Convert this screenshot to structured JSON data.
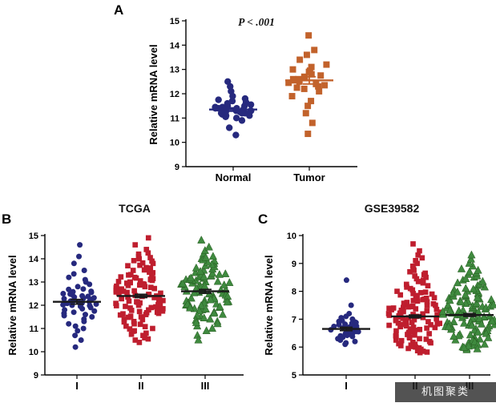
{
  "watermark": {
    "text": "机图聚类"
  },
  "chart_data": [
    {
      "id": "A",
      "type": "scatter",
      "panel_label": "A",
      "title": "",
      "p_label": "P < .001",
      "ylabel": "Relative mRNA level",
      "ylim": [
        9,
        15
      ],
      "yticks": [
        9,
        10,
        11,
        12,
        13,
        14,
        15
      ],
      "legend": "none",
      "grid": false,
      "groups": [
        {
          "label": "Normal",
          "marker": "circle",
          "color": "#26297e",
          "edge": "#191b55",
          "line_color": "#26297e",
          "mean": 11.35,
          "sem": 0.07,
          "values": [
            11.3,
            11.4,
            11.2,
            11.5,
            11.1,
            11.35,
            11.25,
            11.45,
            11.6,
            11.0,
            11.7,
            11.15,
            11.3,
            11.4,
            11.2,
            11.55,
            11.05,
            11.35,
            11.5,
            11.25,
            11.8,
            10.9,
            11.45,
            11.3,
            11.65,
            11.1,
            12.1,
            12.3,
            12.5,
            10.3,
            10.6,
            11.9,
            11.75,
            11.4,
            11.2,
            11.3
          ]
        },
        {
          "label": "Tumor",
          "marker": "square",
          "color": "#c2622b",
          "edge": "#8a3f16",
          "line_color": "#c2622b",
          "mean": 12.55,
          "sem": 0.15,
          "values": [
            12.5,
            12.6,
            12.4,
            12.7,
            12.3,
            12.8,
            12.55,
            12.45,
            12.9,
            12.2,
            13.0,
            12.65,
            13.2,
            13.4,
            13.6,
            13.8,
            14.4,
            12.1,
            11.9,
            11.7,
            11.5,
            11.2,
            10.8,
            10.35,
            12.75,
            12.35,
            13.1,
            12.95,
            12.25,
            12.6
          ]
        }
      ]
    },
    {
      "id": "B",
      "type": "scatter",
      "panel_label": "B",
      "title": "TCGA",
      "ylabel": "Relative mRNA level",
      "ylim": [
        9,
        15
      ],
      "yticks": [
        9,
        10,
        11,
        12,
        13,
        14,
        15
      ],
      "legend": "none",
      "grid": false,
      "groups": [
        {
          "label": "I",
          "marker": "circle",
          "color": "#26297e",
          "edge": "#191b55",
          "line_color": "#1a1a1a",
          "mean": 12.15,
          "sem": 0.1,
          "values": [
            12.1,
            12.2,
            12.0,
            12.3,
            11.9,
            12.15,
            12.25,
            11.8,
            12.4,
            11.7,
            12.5,
            12.05,
            11.95,
            12.35,
            11.6,
            12.6,
            11.5,
            12.45,
            12.55,
            11.4,
            12.7,
            11.3,
            12.8,
            11.2,
            12.9,
            11.1,
            13.0,
            11.0,
            13.1,
            10.9,
            13.2,
            10.7,
            13.35,
            10.5,
            13.5,
            10.2,
            14.6,
            14.1,
            13.8,
            12.12,
            12.18,
            12.08,
            12.22,
            11.85,
            12.28,
            11.75,
            12.38,
            12.02,
            11.98,
            12.32,
            12.48,
            11.65,
            12.58,
            11.55,
            12.68
          ]
        },
        {
          "label": "II",
          "marker": "square",
          "color": "#bf1e2e",
          "edge": "#7e1420",
          "line_color": "#1a1a1a",
          "mean": 12.4,
          "sem": 0.07,
          "values": [
            12.4,
            12.45,
            12.35,
            12.5,
            12.3,
            12.55,
            12.25,
            12.6,
            12.2,
            12.65,
            12.15,
            12.7,
            12.1,
            12.75,
            12.05,
            12.8,
            12.0,
            12.85,
            11.95,
            12.9,
            11.9,
            12.95,
            11.85,
            13.0,
            11.8,
            13.05,
            11.75,
            13.1,
            11.7,
            13.15,
            11.65,
            13.2,
            11.6,
            13.3,
            11.5,
            13.4,
            11.4,
            13.5,
            11.3,
            13.6,
            11.2,
            13.7,
            11.1,
            13.8,
            11.0,
            13.9,
            10.9,
            14.0,
            10.8,
            14.1,
            10.7,
            14.25,
            10.6,
            14.4,
            10.5,
            14.6,
            10.4,
            14.9,
            12.42,
            12.38,
            12.47,
            12.33,
            12.52,
            12.28,
            12.57,
            12.23,
            12.62,
            12.18,
            12.67,
            12.13,
            12.72,
            12.08,
            12.77,
            12.03,
            12.82,
            11.98,
            12.87,
            11.93,
            12.92,
            11.88,
            12.97,
            11.83,
            13.02,
            11.78,
            13.07,
            11.73,
            13.12,
            11.68,
            13.17,
            11.63,
            13.22,
            11.58,
            13.27,
            11.53,
            13.32,
            11.48,
            13.42,
            11.38,
            13.52,
            11.28,
            13.62,
            11.18,
            13.72,
            11.08,
            13.82,
            10.98,
            13.92,
            10.88,
            14.05,
            10.75,
            14.2,
            10.55
          ]
        },
        {
          "label": "III",
          "marker": "triangle",
          "color": "#3f8a3f",
          "edge": "#25591f",
          "line_color": "#1a1a1a",
          "mean": 12.6,
          "sem": 0.08,
          "values": [
            12.6,
            12.65,
            12.55,
            12.7,
            12.5,
            12.75,
            12.45,
            12.8,
            12.4,
            12.85,
            12.35,
            12.9,
            12.3,
            12.95,
            12.25,
            13.0,
            12.2,
            13.05,
            12.15,
            13.1,
            12.1,
            13.15,
            12.05,
            13.2,
            12.0,
            13.25,
            11.95,
            13.3,
            11.9,
            13.35,
            11.85,
            13.4,
            11.8,
            13.5,
            11.7,
            13.6,
            11.6,
            13.7,
            11.5,
            13.8,
            11.4,
            13.9,
            11.3,
            14.0,
            11.2,
            14.1,
            11.1,
            14.2,
            11.0,
            14.35,
            10.9,
            14.5,
            10.7,
            14.8,
            10.5,
            12.62,
            12.58,
            12.67,
            12.53,
            12.72,
            12.48,
            12.77,
            12.43,
            12.82,
            12.38,
            12.87,
            12.33,
            12.92,
            12.28,
            12.97,
            12.23,
            13.02,
            12.18,
            13.07,
            12.13,
            13.12,
            12.08,
            13.17,
            12.03,
            13.22,
            11.98,
            13.27,
            11.93,
            13.32,
            11.88,
            13.37,
            11.83,
            13.45,
            11.75,
            13.55,
            11.65,
            13.65,
            11.55,
            13.75,
            11.45,
            13.85,
            11.35,
            13.95,
            11.25,
            14.05
          ]
        }
      ]
    },
    {
      "id": "C",
      "type": "scatter",
      "panel_label": "C",
      "title": "GSE39582",
      "ylabel": "Relative mRNA level",
      "ylim": [
        5,
        10
      ],
      "yticks": [
        5,
        6,
        7,
        8,
        9,
        10
      ],
      "legend": "none",
      "grid": false,
      "groups": [
        {
          "label": "I",
          "marker": "circle",
          "color": "#26297e",
          "edge": "#191b55",
          "line_color": "#1a1a1a",
          "mean": 6.65,
          "sem": 0.06,
          "values": [
            6.65,
            6.7,
            6.6,
            6.75,
            6.55,
            6.8,
            6.5,
            6.85,
            6.45,
            6.9,
            6.4,
            6.95,
            6.35,
            7.0,
            6.3,
            7.05,
            6.25,
            6.68,
            6.62,
            6.72,
            6.58,
            6.78,
            6.52,
            6.82,
            6.48,
            6.88,
            6.42,
            6.92,
            6.38,
            6.2,
            6.15,
            6.1,
            7.1,
            7.2,
            7.5,
            8.4,
            6.66,
            6.64,
            6.74,
            6.56
          ]
        },
        {
          "label": "II",
          "marker": "square",
          "color": "#bf1e2e",
          "edge": "#7e1420",
          "line_color": "#1a1a1a",
          "mean": 7.1,
          "sem": 0.05,
          "values": [
            7.1,
            7.15,
            7.05,
            7.2,
            7.0,
            7.25,
            6.95,
            7.3,
            6.9,
            7.35,
            6.85,
            7.4,
            6.8,
            7.45,
            6.75,
            7.5,
            6.7,
            7.55,
            6.65,
            7.6,
            6.6,
            7.65,
            6.55,
            7.7,
            6.5,
            7.75,
            6.45,
            7.8,
            6.4,
            7.85,
            6.35,
            7.9,
            6.3,
            7.95,
            6.25,
            8.0,
            6.2,
            8.1,
            6.15,
            8.2,
            6.1,
            8.3,
            6.05,
            8.4,
            6.0,
            8.5,
            5.95,
            8.6,
            5.9,
            8.7,
            5.85,
            8.8,
            5.8,
            9.0,
            9.2,
            9.45,
            9.7,
            7.12,
            7.08,
            7.17,
            7.03,
            7.22,
            6.98,
            7.27,
            6.93,
            7.32,
            6.88,
            7.37,
            6.83,
            7.42,
            6.78,
            7.47,
            6.73,
            7.52,
            6.68,
            7.57,
            6.63,
            7.62,
            6.58,
            7.67,
            6.53,
            7.72,
            6.48,
            7.77,
            6.43,
            7.82,
            6.38,
            7.87,
            6.33,
            7.92,
            6.28,
            7.97,
            6.23,
            8.05,
            6.17,
            8.15,
            6.12,
            8.25,
            6.07,
            8.35,
            6.02,
            8.45,
            5.97,
            8.55,
            5.92,
            8.65,
            5.87,
            8.75,
            5.82,
            8.9,
            9.1,
            9.3,
            7.14,
            7.06,
            7.19,
            7.01,
            7.24,
            6.96,
            7.29,
            6.91,
            7.34,
            6.86,
            7.39,
            6.81,
            7.44,
            6.76,
            7.49,
            6.71
          ]
        },
        {
          "label": "III",
          "marker": "triangle",
          "color": "#3f8a3f",
          "edge": "#25591f",
          "line_color": "#1a1a1a",
          "mean": 7.15,
          "sem": 0.05,
          "values": [
            7.15,
            7.2,
            7.1,
            7.25,
            7.05,
            7.3,
            7.0,
            7.35,
            6.95,
            7.4,
            6.9,
            7.45,
            6.85,
            7.5,
            6.8,
            7.55,
            6.75,
            7.6,
            6.7,
            7.65,
            6.65,
            7.7,
            6.6,
            7.75,
            6.55,
            7.8,
            6.5,
            7.85,
            6.45,
            7.9,
            6.4,
            7.95,
            6.35,
            8.0,
            6.3,
            8.05,
            6.25,
            8.1,
            6.2,
            8.2,
            6.15,
            8.3,
            6.1,
            8.4,
            6.05,
            8.5,
            6.0,
            8.6,
            5.95,
            8.7,
            5.9,
            8.8,
            8.9,
            9.0,
            9.15,
            9.3,
            7.17,
            7.13,
            7.22,
            7.08,
            7.27,
            7.03,
            7.32,
            6.98,
            7.37,
            6.93,
            7.42,
            6.88,
            7.47,
            6.83,
            7.52,
            6.78,
            7.57,
            6.73,
            7.62,
            6.68,
            7.67,
            6.63,
            7.72,
            6.58,
            7.77,
            6.53,
            7.82,
            6.48,
            7.87,
            6.43,
            7.92,
            6.38,
            7.97,
            6.33,
            8.02,
            6.28,
            8.07,
            6.23,
            8.15,
            6.18,
            8.25,
            6.13,
            8.35,
            6.08,
            8.45,
            6.03,
            8.55,
            5.98,
            8.65,
            5.93,
            8.75,
            7.16,
            7.12,
            7.21,
            7.07,
            7.26,
            7.02,
            7.31,
            6.97,
            7.36,
            6.92,
            7.41,
            6.87,
            7.46,
            6.82,
            7.51,
            6.77,
            7.56,
            6.72,
            7.61
          ]
        }
      ]
    }
  ]
}
